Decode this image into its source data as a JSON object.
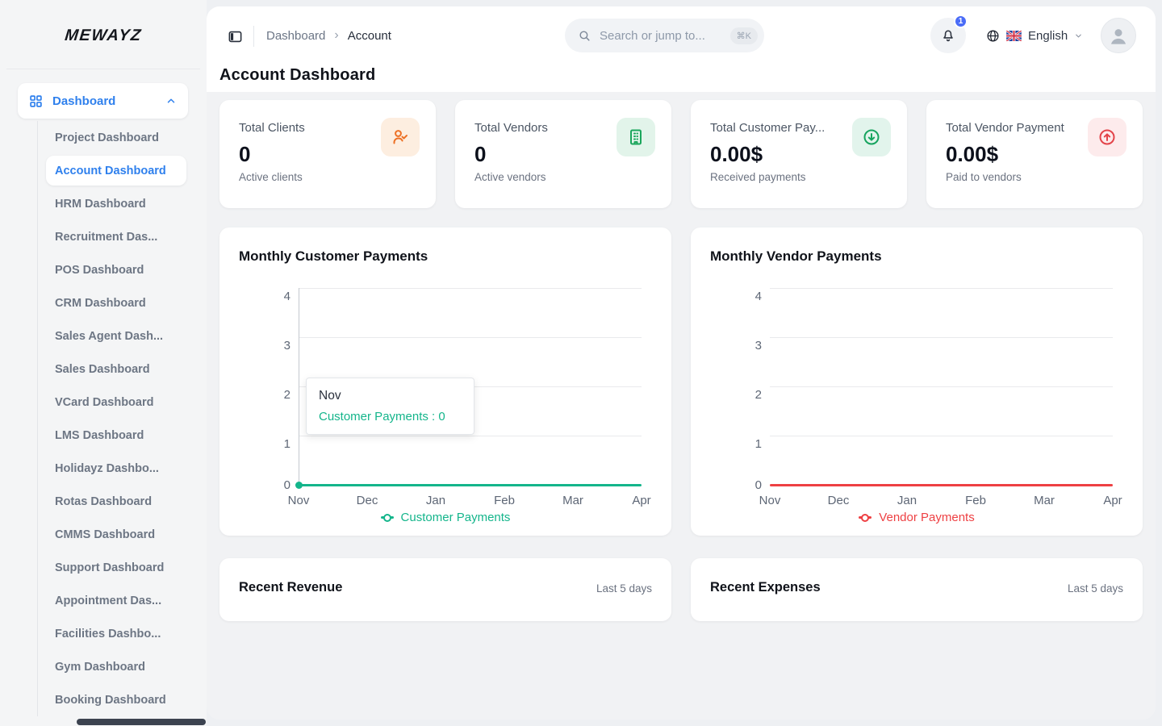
{
  "colors": {
    "accent_blue": "#2f80ed",
    "customer_green": "#14b58b",
    "vendor_red": "#ee4043",
    "badge_blue": "#4a6cf7"
  },
  "brand": {
    "logo_text": "MEWAYZ"
  },
  "sidebar": {
    "parent": {
      "label": "Dashboard",
      "icon": "grid-icon"
    },
    "items": [
      {
        "label": "Project Dashboard"
      },
      {
        "label": "Account Dashboard",
        "active": true
      },
      {
        "label": "HRM Dashboard"
      },
      {
        "label": "Recruitment Das..."
      },
      {
        "label": "POS Dashboard"
      },
      {
        "label": "CRM Dashboard"
      },
      {
        "label": "Sales Agent Dash..."
      },
      {
        "label": "Sales Dashboard"
      },
      {
        "label": "VCard Dashboard"
      },
      {
        "label": "LMS Dashboard"
      },
      {
        "label": "Holidayz Dashbo..."
      },
      {
        "label": "Rotas Dashboard"
      },
      {
        "label": "CMMS Dashboard"
      },
      {
        "label": "Support Dashboard"
      },
      {
        "label": "Appointment Das..."
      },
      {
        "label": "Facilities Dashbo..."
      },
      {
        "label": "Gym Dashboard"
      },
      {
        "label": "Booking Dashboard"
      }
    ]
  },
  "header": {
    "breadcrumb": {
      "section": "Dashboard",
      "separator": "›",
      "page": "Account"
    },
    "search": {
      "placeholder": "Search or jump to...",
      "shortcut": "⌘K",
      "icon": "search-icon"
    },
    "notifications": {
      "count": "1",
      "icon": "bell-icon"
    },
    "language": {
      "label": "English",
      "icons": [
        "globe-icon",
        "uk-flag-icon"
      ]
    }
  },
  "page": {
    "title": "Account Dashboard"
  },
  "stats": [
    {
      "label": "Total Clients",
      "value": "0",
      "sub": "Active clients",
      "icon": "user-check-icon",
      "color": "#ed7024",
      "bg": "#fdeee0"
    },
    {
      "label": "Total Vendors",
      "value": "0",
      "sub": "Active vendors",
      "icon": "building-icon",
      "color": "#1ba65c",
      "bg": "#e2f4ea"
    },
    {
      "label": "Total Customer Pay...",
      "value": "0.00$",
      "sub": "Received payments",
      "icon": "arrow-down-circle-icon",
      "color": "#17a45f",
      "bg": "#e2f4ec"
    },
    {
      "label": "Total Vendor Payment",
      "value": "0.00$",
      "sub": "Paid to vendors",
      "icon": "arrow-up-circle-icon",
      "color": "#e3444a",
      "bg": "#fdebec"
    }
  ],
  "chart_data": [
    {
      "type": "line",
      "title": "Monthly Customer Payments",
      "categories": [
        "Nov",
        "Dec",
        "Jan",
        "Feb",
        "Mar",
        "Apr"
      ],
      "series": [
        {
          "name": "Customer Payments",
          "values": [
            0,
            0,
            0,
            0,
            0,
            0
          ]
        }
      ],
      "ylim": [
        0,
        4
      ],
      "yticks": [
        0,
        1,
        2,
        3,
        4
      ],
      "grid": true,
      "legend_position": "bottom",
      "legend_label": "Customer Payments",
      "color": "#14b58b",
      "tooltip": {
        "x": "Nov",
        "text": "Customer Payments : 0"
      }
    },
    {
      "type": "line",
      "title": "Monthly Vendor Payments",
      "categories": [
        "Nov",
        "Dec",
        "Jan",
        "Feb",
        "Mar",
        "Apr"
      ],
      "series": [
        {
          "name": "Vendor Payments",
          "values": [
            0,
            0,
            0,
            0,
            0,
            0
          ]
        }
      ],
      "ylim": [
        0,
        4
      ],
      "yticks": [
        0,
        1,
        2,
        3,
        4
      ],
      "grid": true,
      "legend_position": "bottom",
      "legend_label": "Vendor Payments",
      "color": "#ee4043"
    }
  ],
  "panels": [
    {
      "title": "Recent Revenue",
      "meta": "Last 5 days"
    },
    {
      "title": "Recent Expenses",
      "meta": "Last 5 days"
    }
  ]
}
